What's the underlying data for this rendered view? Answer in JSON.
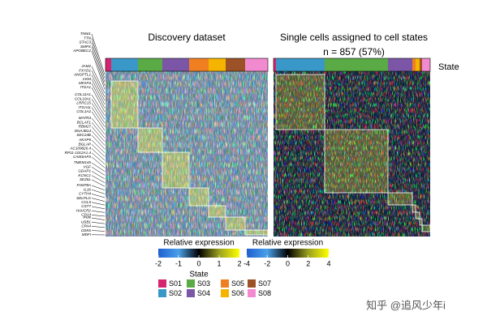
{
  "header": {
    "left_title": "Discovery dataset",
    "right_title": "Single cells assigned to cell states",
    "right_subtitle": "n = 857 (57%)",
    "state_label": "State"
  },
  "genes": [
    "TNNI1",
    "TTN",
    "STAC3",
    "SMPX",
    "APOBEC2",
    "JAM2",
    "FXYD1",
    "ANGPTL1",
    "CKM",
    "MFAP4",
    "ITGA1",
    "COL11A1",
    "COL10A1",
    "LRRC15",
    "ITGA11",
    "COL1A2",
    "MATR3",
    "BCLAF1",
    "RBM27",
    "DNAJB14",
    "SEC24B",
    "AKAP5",
    "BGLAP",
    "AC109826.4",
    "RP11-1012A1.4",
    "CAMSAP3",
    "TMEM145",
    "VGF",
    "GDAP1",
    "KCNC1",
    "SEZ6L",
    "FAM78A",
    "IL16",
    "CYTH4",
    "SELPLG",
    "CCL5",
    "CST7",
    "HAVCR2",
    "CD14",
    "PVR",
    "USB1",
    "CPA4",
    "CDK6",
    "MDFI"
  ],
  "colorbars": [
    {
      "title": "Relative expression",
      "lim": [
        -2,
        2
      ],
      "ticks": [
        -2,
        -1,
        0,
        1,
        2
      ]
    },
    {
      "title": "Relative expression",
      "lim": [
        -4,
        4
      ],
      "ticks": [
        -4,
        -2,
        0,
        2,
        4
      ]
    }
  ],
  "legend": {
    "title": "State",
    "items": [
      {
        "name": "S01",
        "color": "#d6246e"
      },
      {
        "name": "S02",
        "color": "#3a98c9"
      },
      {
        "name": "S03",
        "color": "#5aaa46"
      },
      {
        "name": "S04",
        "color": "#7b55a6"
      },
      {
        "name": "S05",
        "color": "#f07f22"
      },
      {
        "name": "S06",
        "color": "#f4b400"
      },
      {
        "name": "S07",
        "color": "#9c5226"
      },
      {
        "name": "S08",
        "color": "#f28ad0"
      }
    ]
  },
  "watermark": "知乎 @追风少年i"
}
